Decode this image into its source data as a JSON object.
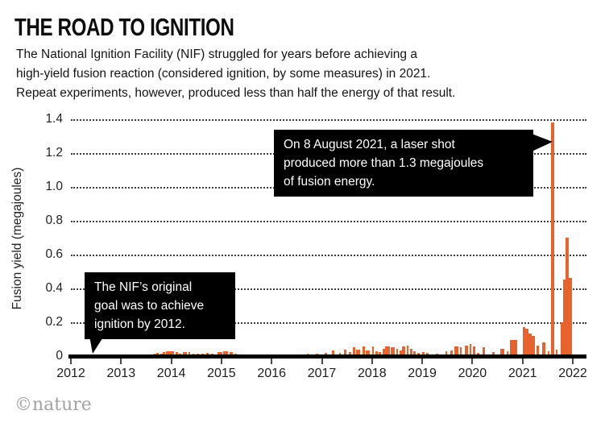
{
  "header": {
    "title": "THE ROAD TO IGNITION",
    "subtitle_lines": [
      "The National Ignition Facility (NIF) struggled for years before achieving a",
      "high-yield fusion reaction (considered ignition, by some measures) in 2021.",
      "Repeat experiments, however, produced less than half the energy of that result."
    ]
  },
  "annotations": {
    "callout_2021_lines": [
      "On 8 August 2021, a laser shot",
      "produced more than 1.3 megajoules",
      "of fusion energy."
    ],
    "callout_2012_lines": [
      "The NIF’s original",
      "goal was to achieve",
      "ignition by 2012."
    ]
  },
  "footer": {
    "credit": "©nature"
  },
  "colors": {
    "bar": "#e8622d",
    "callout_bg": "#000000",
    "callout_text": "#ffffff",
    "axis": "#000000",
    "credit_gray": "#a2a2a2"
  },
  "chart_data": {
    "type": "bar",
    "title": "THE ROAD TO IGNITION",
    "xlabel": "",
    "ylabel": "Fusion yield (megajoules)",
    "xlim": [
      2012,
      2022.3
    ],
    "ylim": [
      0,
      1.4
    ],
    "grid": "horizontal-dotted",
    "x_ticks": [
      2012,
      2013,
      2014,
      2015,
      2016,
      2017,
      2018,
      2019,
      2020,
      2021,
      2022
    ],
    "y_ticks": [
      [
        0,
        "0"
      ],
      [
        0.2,
        "0.2"
      ],
      [
        0.4,
        "0.4"
      ],
      [
        0.6,
        "0.6"
      ],
      [
        0.8,
        "0.8"
      ],
      [
        1.0,
        "1.0"
      ],
      [
        1.2,
        "1.2"
      ],
      [
        1.4,
        "1.4"
      ]
    ],
    "highlight": {
      "x": 2021.6,
      "y": 1.38,
      "note": "8 August 2021 laser shot, >1.3 MJ"
    },
    "series": [
      {
        "name": "Fusion yield per laser shot (MJ)",
        "points": [
          {
            "x": 2013.67,
            "y": 0.012
          },
          {
            "x": 2013.73,
            "y": 0.018
          },
          {
            "x": 2013.8,
            "y": 0.013
          },
          {
            "x": 2013.86,
            "y": 0.022
          },
          {
            "x": 2013.93,
            "y": 0.03,
            "w": 0.08
          },
          {
            "x": 2014.02,
            "y": 0.03,
            "w": 0.08
          },
          {
            "x": 2014.11,
            "y": 0.025
          },
          {
            "x": 2014.18,
            "y": 0.012
          },
          {
            "x": 2014.27,
            "y": 0.022,
            "w": 0.07
          },
          {
            "x": 2014.36,
            "y": 0.022
          },
          {
            "x": 2014.44,
            "y": 0.015
          },
          {
            "x": 2014.53,
            "y": 0.015
          },
          {
            "x": 2014.63,
            "y": 0.012
          },
          {
            "x": 2014.72,
            "y": 0.018
          },
          {
            "x": 2014.82,
            "y": 0.012
          },
          {
            "x": 2014.97,
            "y": 0.022,
            "w": 0.1
          },
          {
            "x": 2015.08,
            "y": 0.028,
            "w": 0.1
          },
          {
            "x": 2015.19,
            "y": 0.025,
            "w": 0.07
          },
          {
            "x": 2015.28,
            "y": 0.012
          },
          {
            "x": 2015.42,
            "y": 0.01
          },
          {
            "x": 2016.28,
            "y": 0.008
          },
          {
            "x": 2016.52,
            "y": 0.01
          },
          {
            "x": 2016.72,
            "y": 0.012
          },
          {
            "x": 2016.9,
            "y": 0.012
          },
          {
            "x": 2017.08,
            "y": 0.02
          },
          {
            "x": 2017.22,
            "y": 0.032
          },
          {
            "x": 2017.36,
            "y": 0.018
          },
          {
            "x": 2017.47,
            "y": 0.038
          },
          {
            "x": 2017.56,
            "y": 0.025
          },
          {
            "x": 2017.64,
            "y": 0.05
          },
          {
            "x": 2017.72,
            "y": 0.04,
            "w": 0.07
          },
          {
            "x": 2017.83,
            "y": 0.058
          },
          {
            "x": 2017.92,
            "y": 0.035,
            "w": 0.08
          },
          {
            "x": 2018.02,
            "y": 0.058
          },
          {
            "x": 2018.09,
            "y": 0.03
          },
          {
            "x": 2018.16,
            "y": 0.025
          },
          {
            "x": 2018.24,
            "y": 0.042
          },
          {
            "x": 2018.31,
            "y": 0.058,
            "w": 0.09
          },
          {
            "x": 2018.41,
            "y": 0.05,
            "w": 0.08
          },
          {
            "x": 2018.5,
            "y": 0.042
          },
          {
            "x": 2018.57,
            "y": 0.035
          },
          {
            "x": 2018.63,
            "y": 0.058,
            "w": 0.07
          },
          {
            "x": 2018.71,
            "y": 0.062
          },
          {
            "x": 2018.78,
            "y": 0.042
          },
          {
            "x": 2018.85,
            "y": 0.03
          },
          {
            "x": 2018.93,
            "y": 0.02
          },
          {
            "x": 2019.02,
            "y": 0.026
          },
          {
            "x": 2019.1,
            "y": 0.02
          },
          {
            "x": 2019.3,
            "y": 0.015
          },
          {
            "x": 2019.48,
            "y": 0.03
          },
          {
            "x": 2019.58,
            "y": 0.035
          },
          {
            "x": 2019.68,
            "y": 0.055,
            "w": 0.08
          },
          {
            "x": 2019.77,
            "y": 0.05
          },
          {
            "x": 2019.88,
            "y": 0.062,
            "w": 0.07
          },
          {
            "x": 2019.96,
            "y": 0.07
          },
          {
            "x": 2020.03,
            "y": 0.055
          },
          {
            "x": 2020.12,
            "y": 0.02
          },
          {
            "x": 2020.22,
            "y": 0.05
          },
          {
            "x": 2020.42,
            "y": 0.025
          },
          {
            "x": 2020.6,
            "y": 0.042,
            "w": 0.08
          },
          {
            "x": 2020.7,
            "y": 0.03
          },
          {
            "x": 2020.82,
            "y": 0.095,
            "w": 0.13
          },
          {
            "x": 2021.03,
            "y": 0.17,
            "w": 0.06
          },
          {
            "x": 2021.09,
            "y": 0.16,
            "w": 0.06
          },
          {
            "x": 2021.15,
            "y": 0.135,
            "w": 0.06
          },
          {
            "x": 2021.21,
            "y": 0.12,
            "w": 0.06
          },
          {
            "x": 2021.3,
            "y": 0.06
          },
          {
            "x": 2021.42,
            "y": 0.08,
            "w": 0.06
          },
          {
            "x": 2021.52,
            "y": 0.03
          },
          {
            "x": 2021.6,
            "y": 1.38,
            "w": 0.06
          },
          {
            "x": 2021.68,
            "y": 0.04
          },
          {
            "x": 2021.78,
            "y": 0.2,
            "w": 0.05
          },
          {
            "x": 2021.83,
            "y": 0.45,
            "w": 0.06
          },
          {
            "x": 2021.89,
            "y": 0.7,
            "w": 0.06
          },
          {
            "x": 2021.95,
            "y": 0.46,
            "w": 0.06
          }
        ]
      }
    ]
  }
}
